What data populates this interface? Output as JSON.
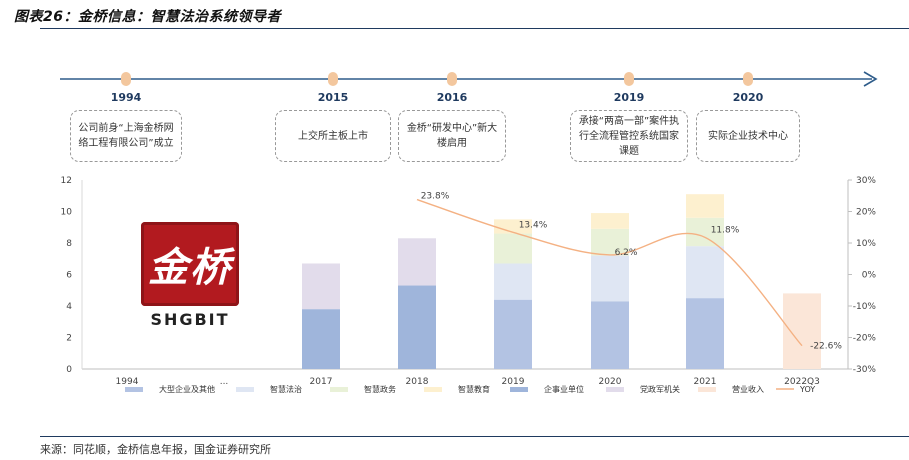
{
  "figure": {
    "title": "图表26：金桥信息：智慧法治系统领导者",
    "source": "来源：同花顺，金桥信息年报，国金证券研究所"
  },
  "timeline": [
    {
      "year": "1994",
      "text": "公司前身“上海金桥网络工程有限公司”成立"
    },
    {
      "year": "2015",
      "text": "上交所主板上市"
    },
    {
      "year": "2016",
      "text": "金桥“研发中心”新大楼启用"
    },
    {
      "year": "2019",
      "text": "承接“两高一部”案件执行全流程管控系统国家课题"
    },
    {
      "year": "2020",
      "text": "实际企业技术中心"
    }
  ],
  "logo": {
    "glyph": "金桥",
    "text": "SHGBIT"
  },
  "chart_data": {
    "type": "bar",
    "stacked": true,
    "categories": [
      "1994",
      "...",
      "2017",
      "2018",
      "2019",
      "2020",
      "2021",
      "2022Q3"
    ],
    "y_left": {
      "min": 0,
      "max": 12,
      "ticks": [
        0,
        2,
        4,
        6,
        8,
        10,
        12
      ]
    },
    "y_right": {
      "min": -30,
      "max": 30,
      "ticks": [
        "-30%",
        "-20%",
        "-10%",
        "0%",
        "10%",
        "20%",
        "30%"
      ]
    },
    "series": [
      {
        "name": "大型企业及其他",
        "color": "#b3c3e3",
        "values": [
          null,
          null,
          null,
          null,
          4.4,
          4.3,
          4.5,
          null
        ]
      },
      {
        "name": "智慧法治",
        "color": "#dfe6f3",
        "values": [
          null,
          null,
          null,
          null,
          2.3,
          2.9,
          3.3,
          null
        ]
      },
      {
        "name": "智慧政务",
        "color": "#e9f1d8",
        "values": [
          null,
          null,
          null,
          null,
          1.9,
          1.7,
          1.8,
          null
        ]
      },
      {
        "name": "智慧教育",
        "color": "#fdf0cf",
        "values": [
          null,
          null,
          null,
          null,
          0.9,
          1.0,
          1.5,
          null
        ]
      },
      {
        "name": "企事业单位",
        "color": "#9fb5db",
        "values": [
          null,
          null,
          3.8,
          5.3,
          null,
          null,
          null,
          null
        ]
      },
      {
        "name": "党政军机关",
        "color": "#e2dceb",
        "values": [
          null,
          null,
          2.9,
          3.0,
          null,
          null,
          null,
          null
        ]
      },
      {
        "name": "营业收入",
        "color": "#fbe6d8",
        "values": [
          null,
          null,
          null,
          null,
          null,
          null,
          null,
          4.8
        ]
      }
    ],
    "line": {
      "name": "YOY",
      "color": "#f4b183",
      "values": [
        null,
        null,
        null,
        23.8,
        13.4,
        6.2,
        11.8,
        -22.6
      ],
      "labels": [
        "",
        "",
        "",
        "23.8%",
        "13.4%",
        "6.2%",
        "11.8%",
        "-22.6%"
      ]
    }
  }
}
